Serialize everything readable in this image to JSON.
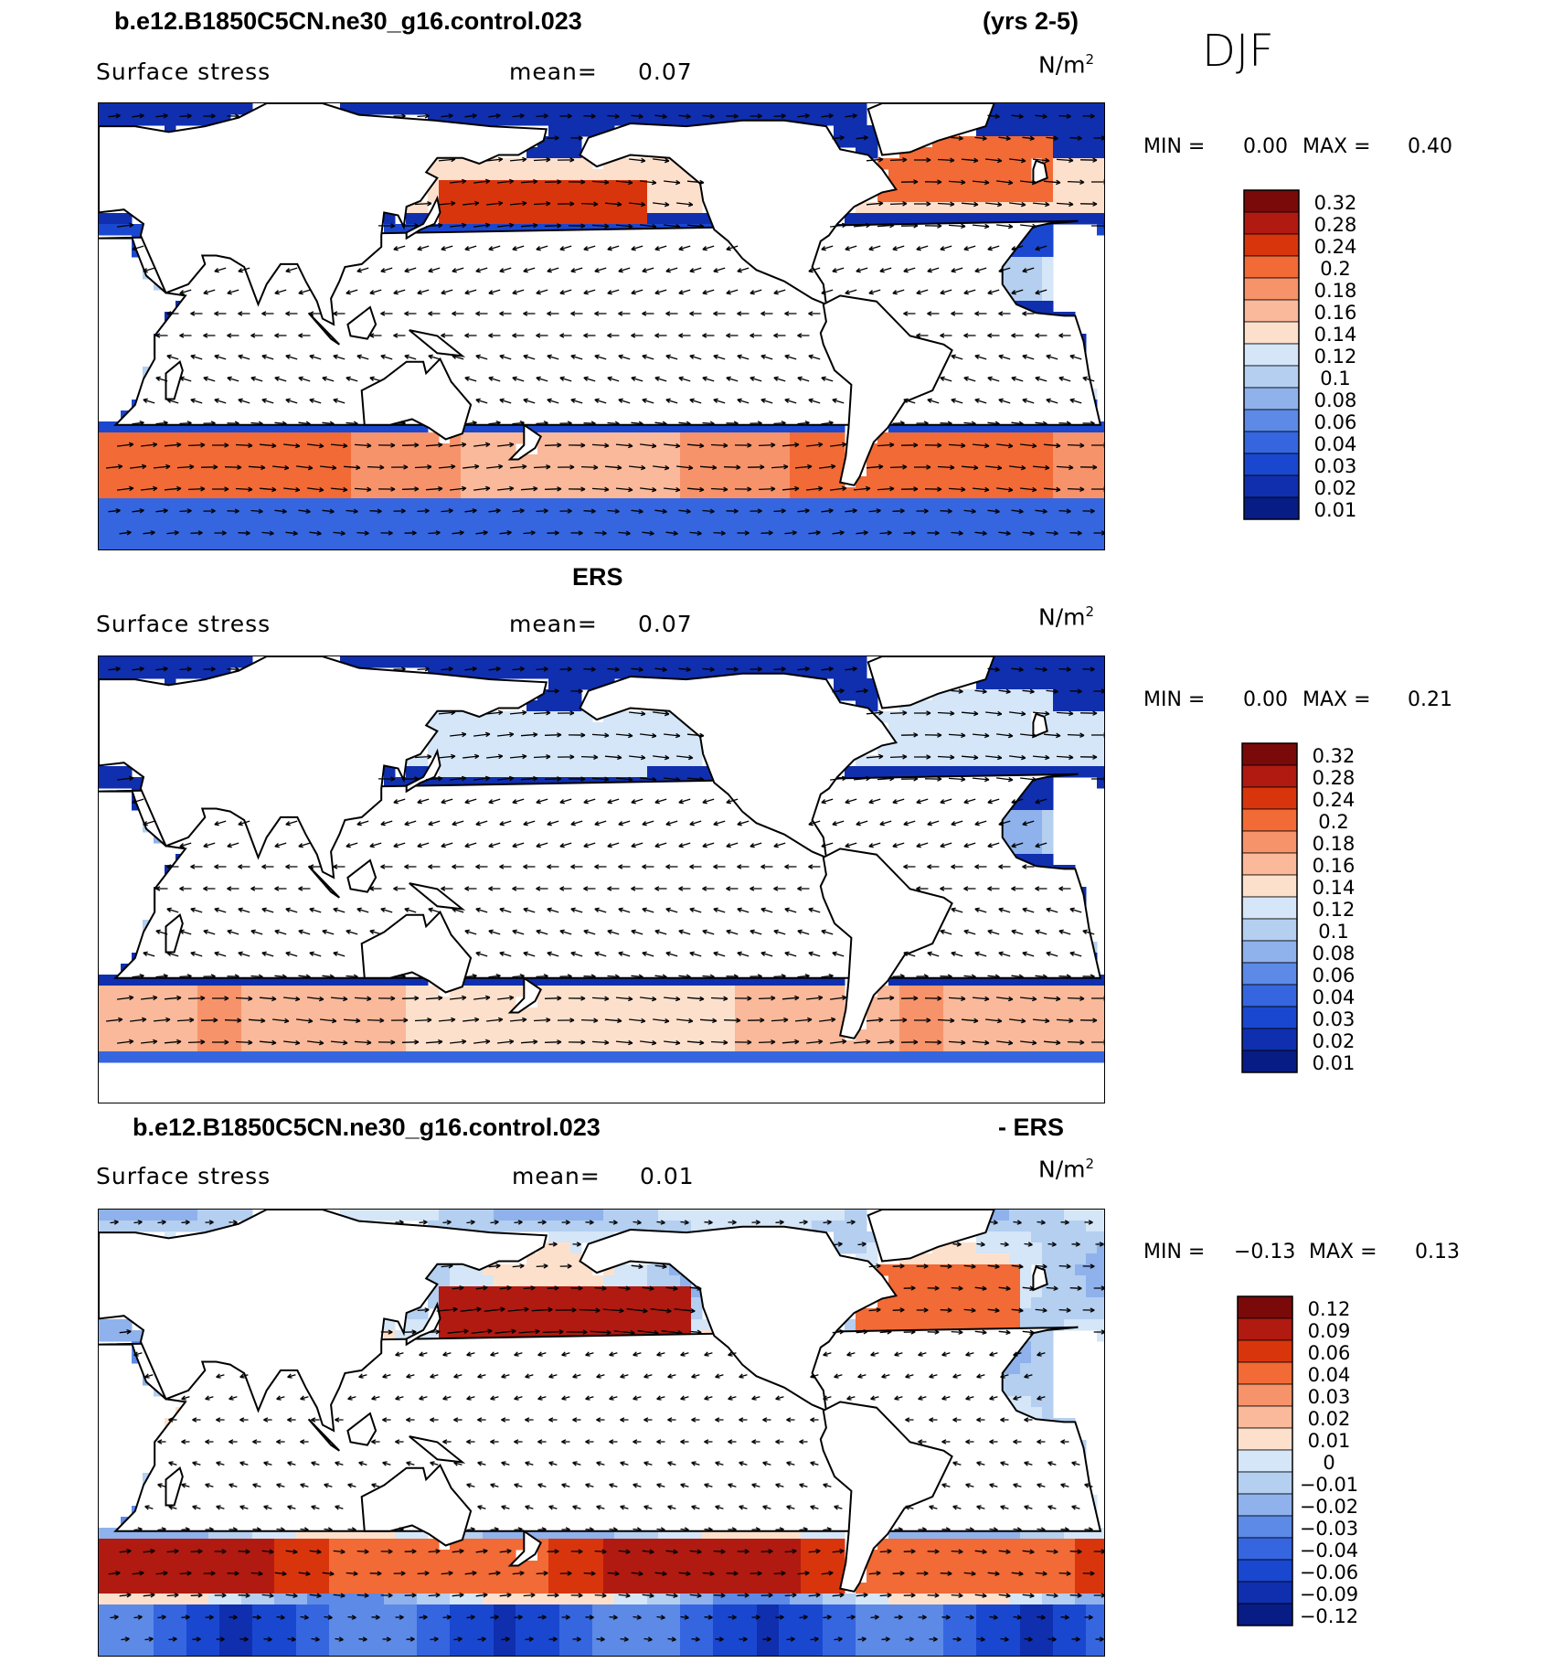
{
  "header": {
    "case_title": "b.e12.B1850C5CN.ne30_g16.control.023",
    "years": "(yrs 2-5)",
    "season": "DJF"
  },
  "panels": [
    {
      "id": "model",
      "title_left": "",
      "title_right": "",
      "subtitle": "Surface stress",
      "mean_label": "mean=",
      "mean_value": "0.07",
      "units": "N/m",
      "units_exp": "2",
      "min_label": "MIN =",
      "min_value": "0.00",
      "max_label": "MAX =",
      "max_value": "0.40",
      "colorbar_labels": [
        "0.32",
        "0.28",
        "0.24",
        "0.2",
        "0.18",
        "0.16",
        "0.14",
        "0.12",
        "0.1",
        "0.08",
        "0.06",
        "0.04",
        "0.03",
        "0.02",
        "0.01"
      ]
    },
    {
      "id": "obs",
      "title_left": "ERS",
      "title_right": "",
      "subtitle": "Surface stress",
      "mean_label": "mean=",
      "mean_value": "0.07",
      "units": "N/m",
      "units_exp": "2",
      "min_label": "MIN =",
      "min_value": "0.00",
      "max_label": "MAX =",
      "max_value": "0.21",
      "colorbar_labels": [
        "0.32",
        "0.28",
        "0.24",
        "0.2",
        "0.18",
        "0.16",
        "0.14",
        "0.12",
        "0.1",
        "0.08",
        "0.06",
        "0.04",
        "0.03",
        "0.02",
        "0.01"
      ]
    },
    {
      "id": "diff",
      "title_left": "b.e12.B1850C5CN.ne30_g16.control.023",
      "title_right": "- ERS",
      "subtitle": "Surface stress",
      "mean_label": "mean=",
      "mean_value": "0.01",
      "units": "N/m",
      "units_exp": "2",
      "min_label": "MIN =",
      "min_value": "−0.13",
      "max_label": "MAX =",
      "max_value": "0.13",
      "colorbar_labels": [
        "0.12",
        "0.09",
        "0.06",
        "0.04",
        "0.03",
        "0.02",
        "0.01",
        "0",
        "−0.01",
        "−0.02",
        "−0.03",
        "−0.04",
        "−0.06",
        "−0.09",
        "−0.12"
      ]
    }
  ],
  "colors": {
    "scale": [
      "#7a0a0a",
      "#b01a10",
      "#d9350c",
      "#f26a35",
      "#f7936a",
      "#f9b99a",
      "#fde0cc",
      "#d4e6f7",
      "#b4cff0",
      "#8fb2ec",
      "#5c8ae6",
      "#3566e0",
      "#1a47cf",
      "#0f2fae",
      "#071c84"
    ]
  }
}
